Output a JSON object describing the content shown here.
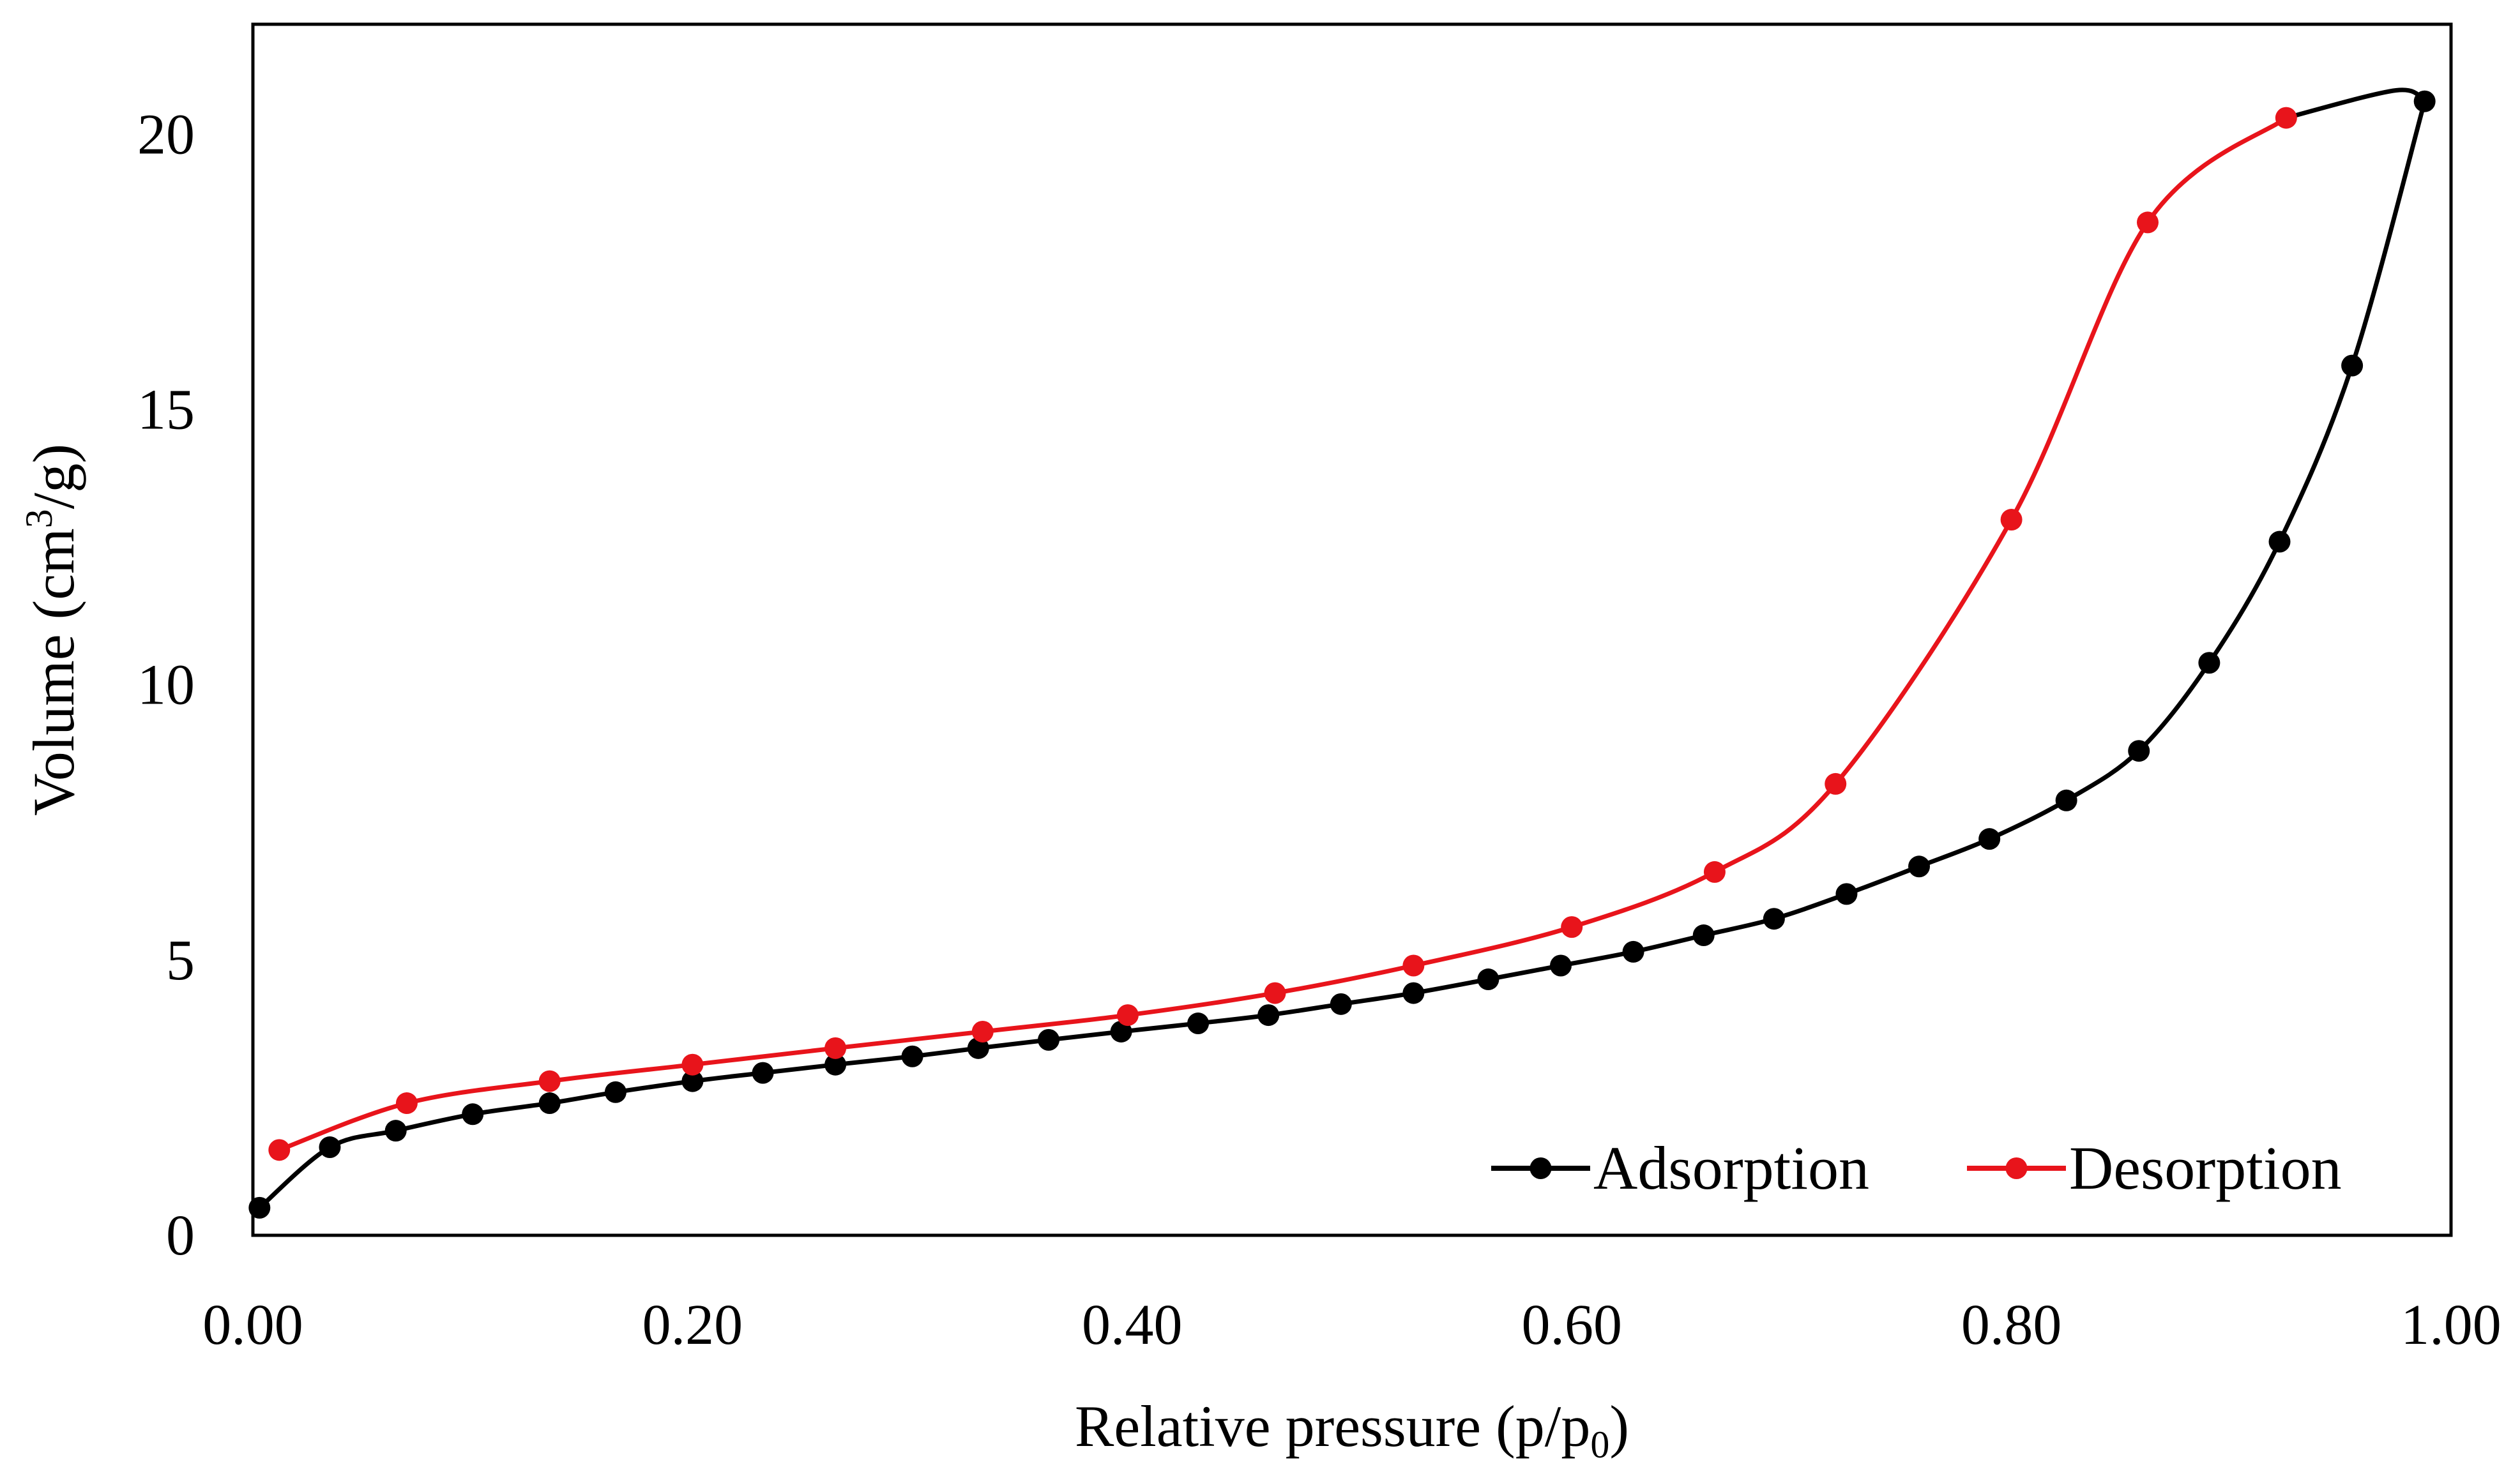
{
  "chart_data": {
    "type": "line",
    "title": "",
    "xlabel": "Relative pressure (p/p",
    "xlabel_subscript": "0",
    "xlabel_suffix": ")",
    "ylabel": "Volume (cm",
    "ylabel_superscript": "3",
    "ylabel_suffix": "/g)",
    "xlim": [
      0,
      1.0
    ],
    "ylim": [
      0,
      22
    ],
    "x_ticks": [
      0,
      0.2,
      0.4,
      0.6,
      0.8,
      1.0
    ],
    "x_tick_labels": [
      "0.00",
      "0.20",
      "0.40",
      "0.60",
      "0.80",
      "1.00"
    ],
    "y_ticks": [
      0,
      5,
      10,
      15,
      20
    ],
    "y_tick_labels": [
      "0",
      "5",
      "10",
      "15",
      "20"
    ],
    "grid": false,
    "legend_position": "bottom-right",
    "series": [
      {
        "name": "Adsorption",
        "color": "#000000",
        "x": [
          0.003,
          0.035,
          0.065,
          0.1,
          0.135,
          0.165,
          0.2,
          0.232,
          0.265,
          0.3,
          0.33,
          0.362,
          0.395,
          0.43,
          0.462,
          0.495,
          0.528,
          0.562,
          0.595,
          0.628,
          0.66,
          0.692,
          0.725,
          0.758,
          0.79,
          0.825,
          0.858,
          0.89,
          0.922,
          0.955,
          0.988
        ],
        "y": [
          0.5,
          1.6,
          1.9,
          2.2,
          2.4,
          2.6,
          2.8,
          2.95,
          3.1,
          3.25,
          3.4,
          3.55,
          3.7,
          3.85,
          4.0,
          4.2,
          4.4,
          4.65,
          4.9,
          5.15,
          5.45,
          5.75,
          6.2,
          6.7,
          7.2,
          7.9,
          8.8,
          10.4,
          12.6,
          15.8,
          20.6
        ],
        "closing_x": [
          0.988,
          0.975,
          0.925
        ],
        "closing_y": [
          20.6,
          20.8,
          20.3
        ]
      },
      {
        "name": "Desorption",
        "color": "#e8141b",
        "x": [
          0.012,
          0.07,
          0.135,
          0.2,
          0.265,
          0.332,
          0.398,
          0.465,
          0.528,
          0.6,
          0.665,
          0.72,
          0.8,
          0.862,
          0.925
        ],
        "y": [
          1.55,
          2.4,
          2.8,
          3.1,
          3.4,
          3.7,
          4.0,
          4.4,
          4.9,
          5.6,
          6.6,
          8.2,
          13.0,
          18.4,
          20.3
        ]
      }
    ]
  }
}
